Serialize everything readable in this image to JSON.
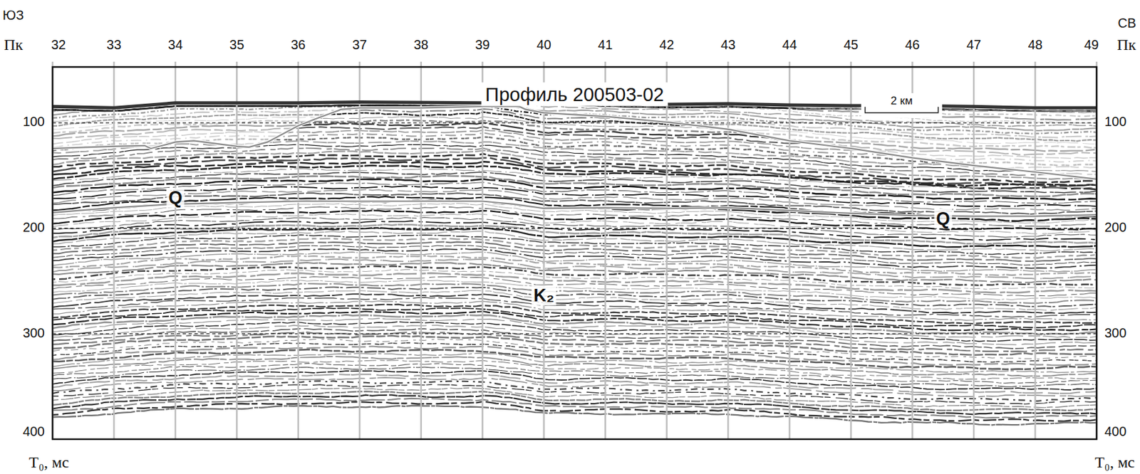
{
  "chart_data": {
    "type": "seismic-section",
    "title": "Профиль 200503-02",
    "x_label": "Пк",
    "y_label": "T₀, мс",
    "direction_labels": [
      "ЮЗ",
      "СВ"
    ],
    "xlim": [
      32,
      49
    ],
    "xticks": [
      32,
      33,
      34,
      35,
      36,
      37,
      38,
      39,
      40,
      41,
      42,
      43,
      44,
      45,
      46,
      47,
      48,
      49
    ],
    "ylim": [
      47,
      400
    ],
    "yticks": [
      100,
      200,
      300,
      400
    ],
    "grid": true,
    "series": [
      {
        "color": "#333333",
        "line_style": "solid",
        "x": [
          32,
          33,
          34,
          36,
          37,
          39,
          39.6,
          40,
          41,
          42,
          43,
          44,
          45,
          46,
          47,
          48,
          49
        ],
        "values": [
          84.5,
          85.8,
          81.1,
          81.1,
          80.4,
          81.1,
          77.7,
          78.4,
          81.1,
          82.4,
          81.8,
          83.1,
          83.8,
          83.8,
          84.5,
          85.8,
          85.8
        ]
      },
      {
        "color": "#8a8a8a",
        "line_style": "solid",
        "x": [
          32,
          33,
          33.5,
          33.6,
          34,
          34.3,
          35,
          35.2,
          35.5,
          36,
          36.3,
          36.7,
          37,
          38,
          39,
          39.6,
          39.7,
          40,
          41,
          42,
          43,
          44,
          45,
          46,
          47,
          48,
          49
        ],
        "values": [
          124.3,
          122.3,
          121.6,
          124.3,
          118.2,
          116.9,
          122.3,
          123.0,
          118.2,
          102.7,
          95.9,
          87.2,
          85.8,
          85.8,
          84.5,
          84.5,
          87.2,
          90.5,
          93.9,
          99.3,
          106.1,
          116.9,
          124.3,
          133.1,
          140.5,
          146.6,
          153.4
        ]
      },
      {
        "color": "#8a8a8a",
        "line_style": "solid",
        "x": [
          32,
          33,
          34,
          35,
          36,
          37,
          38,
          39,
          39.5,
          40,
          41,
          42,
          43,
          44,
          45,
          46,
          47,
          48,
          49
        ],
        "values": [
          185.1,
          180.4,
          177.0,
          175.7,
          174.3,
          174.3,
          174.3,
          174.3,
          177.0,
          181.1,
          180.4,
          181.1,
          180.4,
          183.1,
          185.8,
          187.8,
          188.5,
          188.5,
          187.2
        ]
      }
    ],
    "annotations": [
      {
        "text": "Q",
        "x": 34.0,
        "y": 172.3
      },
      {
        "text": "Q",
        "x": 46.5,
        "y": 191.9
      },
      {
        "text": "K₂",
        "x": 40.0,
        "y": 264.9
      }
    ],
    "scale_bar": {
      "label": "2 км",
      "x": [
        45.23,
        46.42
      ],
      "y": 90.5
    }
  }
}
